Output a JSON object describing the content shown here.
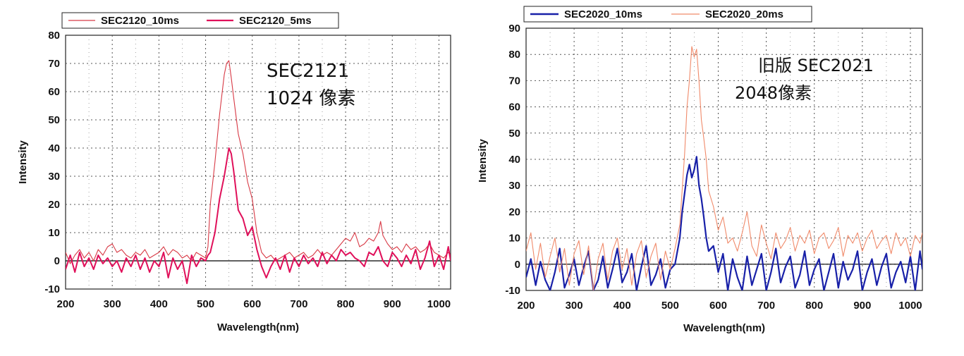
{
  "chart_data": [
    {
      "type": "line",
      "title": "",
      "xlabel": "Wavelength(nm)",
      "ylabel": "Intensity",
      "xlim": [
        200,
        1025
      ],
      "ylim": [
        -10,
        80
      ],
      "xticks": [
        "200",
        "300",
        "400",
        "500",
        "600",
        "700",
        "800",
        "900",
        "1000"
      ],
      "yticks": [
        "-10",
        "0",
        "10",
        "20",
        "30",
        "40",
        "50",
        "60",
        "70",
        "80"
      ],
      "grid": true,
      "legend_position": "top",
      "annotations": [
        "SEC2121",
        "1024 像素"
      ],
      "series": [
        {
          "name": "SEC2120_10ms",
          "color": "#d83a46",
          "x": [
            200,
            210,
            220,
            230,
            240,
            250,
            260,
            270,
            280,
            290,
            300,
            310,
            320,
            330,
            340,
            350,
            360,
            370,
            380,
            390,
            400,
            410,
            420,
            430,
            440,
            450,
            460,
            470,
            480,
            490,
            500,
            505,
            510,
            520,
            530,
            540,
            545,
            550,
            555,
            560,
            570,
            580,
            590,
            600,
            610,
            620,
            630,
            640,
            650,
            660,
            670,
            680,
            690,
            700,
            710,
            720,
            730,
            740,
            750,
            760,
            770,
            780,
            790,
            800,
            810,
            820,
            830,
            840,
            850,
            860,
            870,
            875,
            880,
            890,
            900,
            910,
            920,
            930,
            940,
            950,
            960,
            970,
            980,
            990,
            1000,
            1010,
            1020,
            1025
          ],
          "y": [
            3,
            -1,
            2,
            4,
            1,
            3,
            0,
            4,
            2,
            5,
            6,
            3,
            4,
            2,
            1,
            3,
            2,
            4,
            1,
            2,
            3,
            5,
            2,
            4,
            3,
            1,
            2,
            0,
            3,
            2,
            1,
            5,
            20,
            35,
            52,
            66,
            70,
            71,
            65,
            58,
            45,
            38,
            28,
            22,
            10,
            3,
            1,
            2,
            0,
            1,
            2,
            3,
            1,
            2,
            3,
            1,
            2,
            4,
            2,
            3,
            2,
            4,
            6,
            8,
            7,
            10,
            5,
            6,
            8,
            7,
            10,
            14,
            9,
            6,
            4,
            5,
            3,
            6,
            4,
            5,
            3,
            4,
            6,
            3,
            2,
            1,
            3,
            2
          ]
        },
        {
          "name": "SEC2120_5ms",
          "color": "#e0105a",
          "x": [
            200,
            210,
            220,
            230,
            240,
            250,
            260,
            270,
            280,
            290,
            300,
            310,
            320,
            330,
            340,
            350,
            360,
            370,
            380,
            390,
            400,
            410,
            420,
            430,
            440,
            450,
            460,
            470,
            480,
            490,
            500,
            505,
            510,
            520,
            530,
            540,
            545,
            550,
            555,
            560,
            565,
            570,
            580,
            590,
            600,
            610,
            620,
            630,
            640,
            650,
            660,
            670,
            680,
            690,
            700,
            710,
            720,
            730,
            740,
            750,
            760,
            770,
            780,
            790,
            800,
            810,
            820,
            830,
            840,
            850,
            860,
            870,
            880,
            890,
            900,
            910,
            920,
            930,
            940,
            950,
            960,
            970,
            980,
            990,
            1000,
            1010,
            1020,
            1025
          ],
          "y": [
            -3,
            2,
            -4,
            3,
            -2,
            1,
            -3,
            2,
            -1,
            1,
            -2,
            0,
            -4,
            1,
            -2,
            2,
            -3,
            1,
            -4,
            0,
            -2,
            3,
            -6,
            1,
            -3,
            0,
            -8,
            2,
            -2,
            1,
            0,
            2,
            3,
            10,
            22,
            30,
            35,
            40,
            38,
            32,
            25,
            18,
            15,
            9,
            12,
            4,
            -2,
            -6,
            -2,
            1,
            -3,
            2,
            -4,
            1,
            -2,
            2,
            -1,
            1,
            -2,
            3,
            -1,
            2,
            0,
            4,
            2,
            3,
            1,
            0,
            -2,
            3,
            2,
            5,
            0,
            -2,
            3,
            1,
            -2,
            2,
            -1,
            4,
            -3,
            1,
            7,
            -2,
            2,
            -3,
            5,
            0
          ]
        }
      ]
    },
    {
      "type": "line",
      "title": "",
      "xlabel": "Wavelength(nm)",
      "ylabel": "Intensity",
      "xlim": [
        200,
        1025
      ],
      "ylim": [
        -10,
        90
      ],
      "xticks": [
        "200",
        "300",
        "400",
        "500",
        "600",
        "700",
        "800",
        "900",
        "1000"
      ],
      "yticks": [
        "-10",
        "0",
        "10",
        "20",
        "30",
        "40",
        "50",
        "60",
        "70",
        "80",
        "90"
      ],
      "grid": true,
      "legend_position": "top",
      "annotations": [
        "旧版 SEC2021",
        "2048像素"
      ],
      "series": [
        {
          "name": "SEC2020_10ms",
          "color": "#1820a8",
          "x": [
            200,
            210,
            220,
            230,
            240,
            250,
            260,
            270,
            280,
            290,
            300,
            310,
            320,
            330,
            340,
            350,
            360,
            370,
            380,
            390,
            400,
            410,
            420,
            430,
            440,
            450,
            460,
            470,
            480,
            490,
            500,
            510,
            520,
            525,
            530,
            535,
            540,
            545,
            550,
            555,
            560,
            565,
            570,
            575,
            580,
            590,
            600,
            610,
            620,
            630,
            640,
            650,
            660,
            670,
            680,
            690,
            700,
            710,
            720,
            730,
            740,
            750,
            760,
            770,
            780,
            790,
            800,
            810,
            820,
            830,
            840,
            850,
            860,
            870,
            880,
            890,
            900,
            910,
            920,
            930,
            940,
            950,
            960,
            970,
            980,
            990,
            1000,
            1010,
            1020,
            1025
          ],
          "y": [
            -5,
            2,
            -8,
            1,
            -6,
            -10,
            -3,
            6,
            -9,
            -4,
            2,
            -8,
            -1,
            5,
            -10,
            -6,
            3,
            -9,
            -2,
            6,
            -7,
            -3,
            4,
            -10,
            -1,
            7,
            -8,
            -4,
            2,
            -9,
            -2,
            0,
            10,
            20,
            27,
            34,
            38,
            33,
            36,
            41,
            30,
            25,
            18,
            10,
            5,
            7,
            -3,
            4,
            -10,
            2,
            -5,
            -10,
            3,
            -8,
            -2,
            4,
            -10,
            -3,
            6,
            -7,
            -1,
            3,
            -9,
            -4,
            5,
            -8,
            -2,
            2,
            -10,
            -3,
            4,
            -9,
            1,
            -6,
            -2,
            5,
            -10,
            -3,
            2,
            -8,
            -1,
            4,
            -9,
            -3,
            1,
            -7,
            3,
            -10,
            5,
            -2
          ]
        },
        {
          "name": "SEC2020_20ms",
          "color": "#f08a6a",
          "x": [
            200,
            210,
            220,
            230,
            240,
            250,
            260,
            270,
            280,
            290,
            300,
            310,
            320,
            330,
            340,
            350,
            360,
            370,
            380,
            390,
            400,
            410,
            420,
            430,
            440,
            450,
            460,
            470,
            480,
            490,
            500,
            510,
            520,
            530,
            535,
            540,
            545,
            550,
            555,
            560,
            565,
            570,
            575,
            580,
            590,
            600,
            610,
            620,
            630,
            640,
            650,
            660,
            670,
            680,
            690,
            700,
            710,
            720,
            730,
            740,
            750,
            760,
            770,
            780,
            790,
            800,
            810,
            820,
            830,
            840,
            850,
            860,
            870,
            880,
            890,
            900,
            910,
            920,
            930,
            940,
            950,
            960,
            970,
            980,
            990,
            1000,
            1010,
            1020,
            1025
          ],
          "y": [
            5,
            12,
            -2,
            8,
            -5,
            3,
            10,
            -3,
            6,
            -8,
            4,
            9,
            -4,
            7,
            -10,
            2,
            8,
            -6,
            5,
            10,
            -2,
            6,
            -8,
            4,
            9,
            -5,
            3,
            8,
            -6,
            5,
            -2,
            6,
            15,
            42,
            60,
            70,
            83,
            79,
            82,
            70,
            55,
            48,
            40,
            28,
            22,
            13,
            18,
            8,
            10,
            5,
            12,
            20,
            7,
            3,
            15,
            8,
            2,
            12,
            6,
            9,
            14,
            5,
            11,
            8,
            13,
            4,
            10,
            12,
            6,
            9,
            14,
            3,
            11,
            8,
            12,
            5,
            10,
            13,
            6,
            9,
            11,
            4,
            12,
            7,
            10,
            3,
            11,
            8,
            12
          ]
        }
      ]
    }
  ]
}
